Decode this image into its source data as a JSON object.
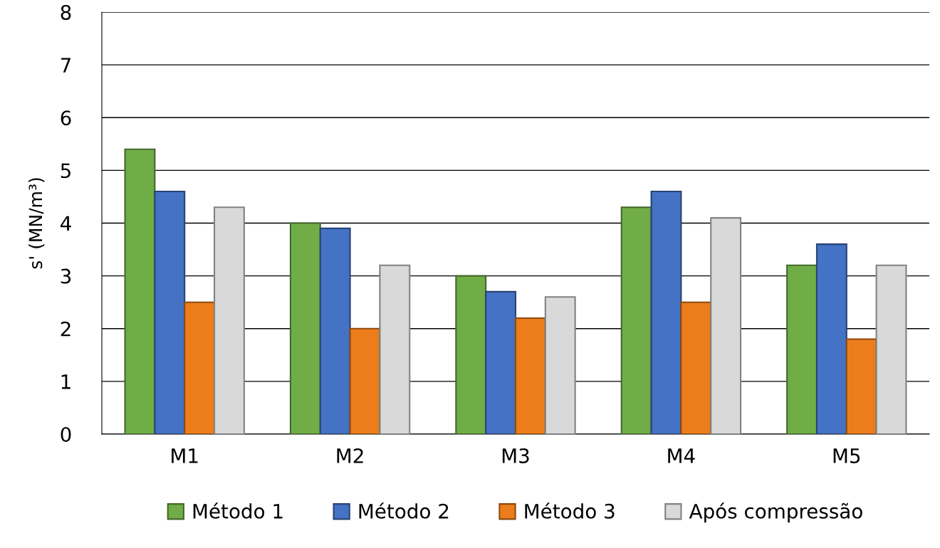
{
  "chart_data": {
    "type": "bar",
    "ylabel": "s' (MN/m³)",
    "categories": [
      "M1",
      "M2",
      "M3",
      "M4",
      "M5"
    ],
    "series": [
      {
        "name": "Método 1",
        "color": "#70ad47",
        "values": [
          5.4,
          4.0,
          3.0,
          4.3,
          3.2
        ]
      },
      {
        "name": "Método 2",
        "color": "#4472c4",
        "values": [
          4.6,
          3.9,
          2.7,
          4.6,
          3.6
        ]
      },
      {
        "name": "Método 3",
        "color": "#ed7d1a",
        "values": [
          2.5,
          2.0,
          2.2,
          2.5,
          1.8
        ]
      },
      {
        "name": "Após compressão",
        "color": "#d9d9d9",
        "values": [
          4.3,
          3.2,
          2.6,
          4.1,
          3.2
        ]
      }
    ],
    "ylim": [
      0,
      8
    ],
    "yticks": [
      0,
      1,
      2,
      3,
      4,
      5,
      6,
      7,
      8
    ],
    "grid": "y",
    "legend": "bottom"
  }
}
